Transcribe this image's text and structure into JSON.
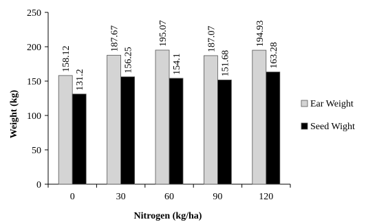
{
  "chart_data": {
    "type": "bar",
    "categories": [
      "0",
      "30",
      "60",
      "90",
      "120"
    ],
    "series": [
      {
        "name": "Ear Weight",
        "values": [
          158.12,
          187.67,
          195.07,
          187.07,
          194.93
        ],
        "color": "#d4d4d4"
      },
      {
        "name": "Seed Wight",
        "values": [
          131.2,
          156.25,
          154.1,
          151.68,
          163.28
        ],
        "color": "#000000"
      }
    ],
    "data_labels": [
      [
        "158.12",
        "187.67",
        "195.07",
        "187.07",
        "194.93"
      ],
      [
        "131.2",
        "156.25",
        "154.1",
        "151.68",
        "163.28"
      ]
    ],
    "title": "",
    "xlabel": "Nitrogen (kg/ha)",
    "ylabel": "Weight (kg)",
    "ylim": [
      0,
      250
    ],
    "yticks": [
      "0",
      "50",
      "100",
      "150",
      "200",
      "250"
    ],
    "grid": false,
    "legend_position": "right"
  }
}
